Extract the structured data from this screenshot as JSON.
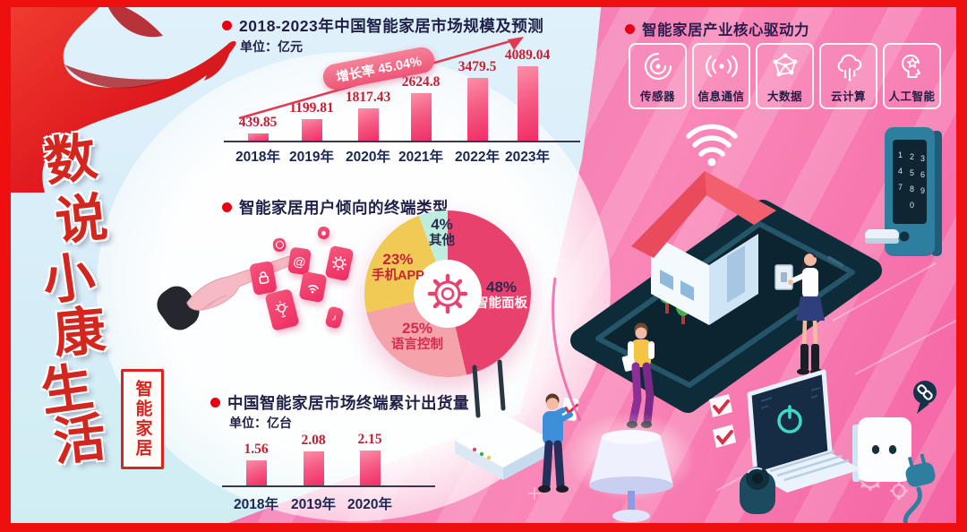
{
  "brand": {
    "vertical_title_chars": [
      "数",
      "说",
      "小",
      "康",
      "生",
      "活"
    ],
    "vertical_tag": "智能家居"
  },
  "labels": {
    "unit1": "单位：亿元",
    "unit3": "单位：亿台",
    "growth": "增长率 45.04%"
  },
  "terminal_pie": {
    "title": "智能家居用户倾向的终端类型",
    "segments": [
      {
        "pct": "48%",
        "label": "智能面板",
        "value": 48,
        "color": "#e8416d"
      },
      {
        "pct": "25%",
        "label": "语言控制",
        "value": 25,
        "color": "#f5a3aa"
      },
      {
        "pct": "23%",
        "label": "手机APP",
        "value": 23,
        "color": "#f0ca55"
      },
      {
        "pct": "4%",
        "label": "其他",
        "value": 4,
        "color": "#bdeedd"
      }
    ]
  },
  "drivers": {
    "title": "智能家居产业核心驱动力",
    "items": [
      {
        "label": "传感器",
        "icon": "sensor-icon"
      },
      {
        "label": "信息通信",
        "icon": "signal-icon"
      },
      {
        "label": "大数据",
        "icon": "big-data-icon"
      },
      {
        "label": "云计算",
        "icon": "cloud-icon"
      },
      {
        "label": "人工智能",
        "icon": "ai-icon"
      }
    ]
  },
  "colors": {
    "accent_red": "#e60012",
    "frame_red": "#ee0f0f",
    "deep_pink": "#e8416d",
    "bar_pink": "#f02c64",
    "value_red": "#c32033",
    "navy_text": "#1f2048",
    "left_bg": "#d7edf8",
    "right_bg": "#f463a4"
  },
  "chart_data": [
    {
      "type": "bar",
      "title": "2018-2023年中国智能家居市场规模及预测",
      "unit": "亿元",
      "categories": [
        "2018年",
        "2019年",
        "2020年",
        "2021年",
        "2022年",
        "2023年"
      ],
      "values": [
        439.85,
        1199.81,
        1817.43,
        2624.8,
        3479.5,
        4089.04
      ],
      "annotation": "增长率 45.04%",
      "bar_color": "#f02c64",
      "ylim": [
        0,
        4500
      ]
    },
    {
      "type": "pie",
      "title": "智能家居用户倾向的终端类型",
      "labels": [
        "智能面板",
        "语言控制",
        "手机APP",
        "其他"
      ],
      "values": [
        48,
        25,
        23,
        4
      ],
      "colors": [
        "#e8416d",
        "#f5a3aa",
        "#f0ca55",
        "#bdeedd"
      ],
      "center_icon": "gear"
    },
    {
      "type": "bar",
      "title": "中国智能家居市场终端累计出货量",
      "unit": "亿台",
      "categories": [
        "2018年",
        "2019年",
        "2020年"
      ],
      "values": [
        1.56,
        2.08,
        2.15
      ],
      "bar_color": "#f02c64",
      "ylim": [
        0,
        2.5
      ]
    }
  ]
}
